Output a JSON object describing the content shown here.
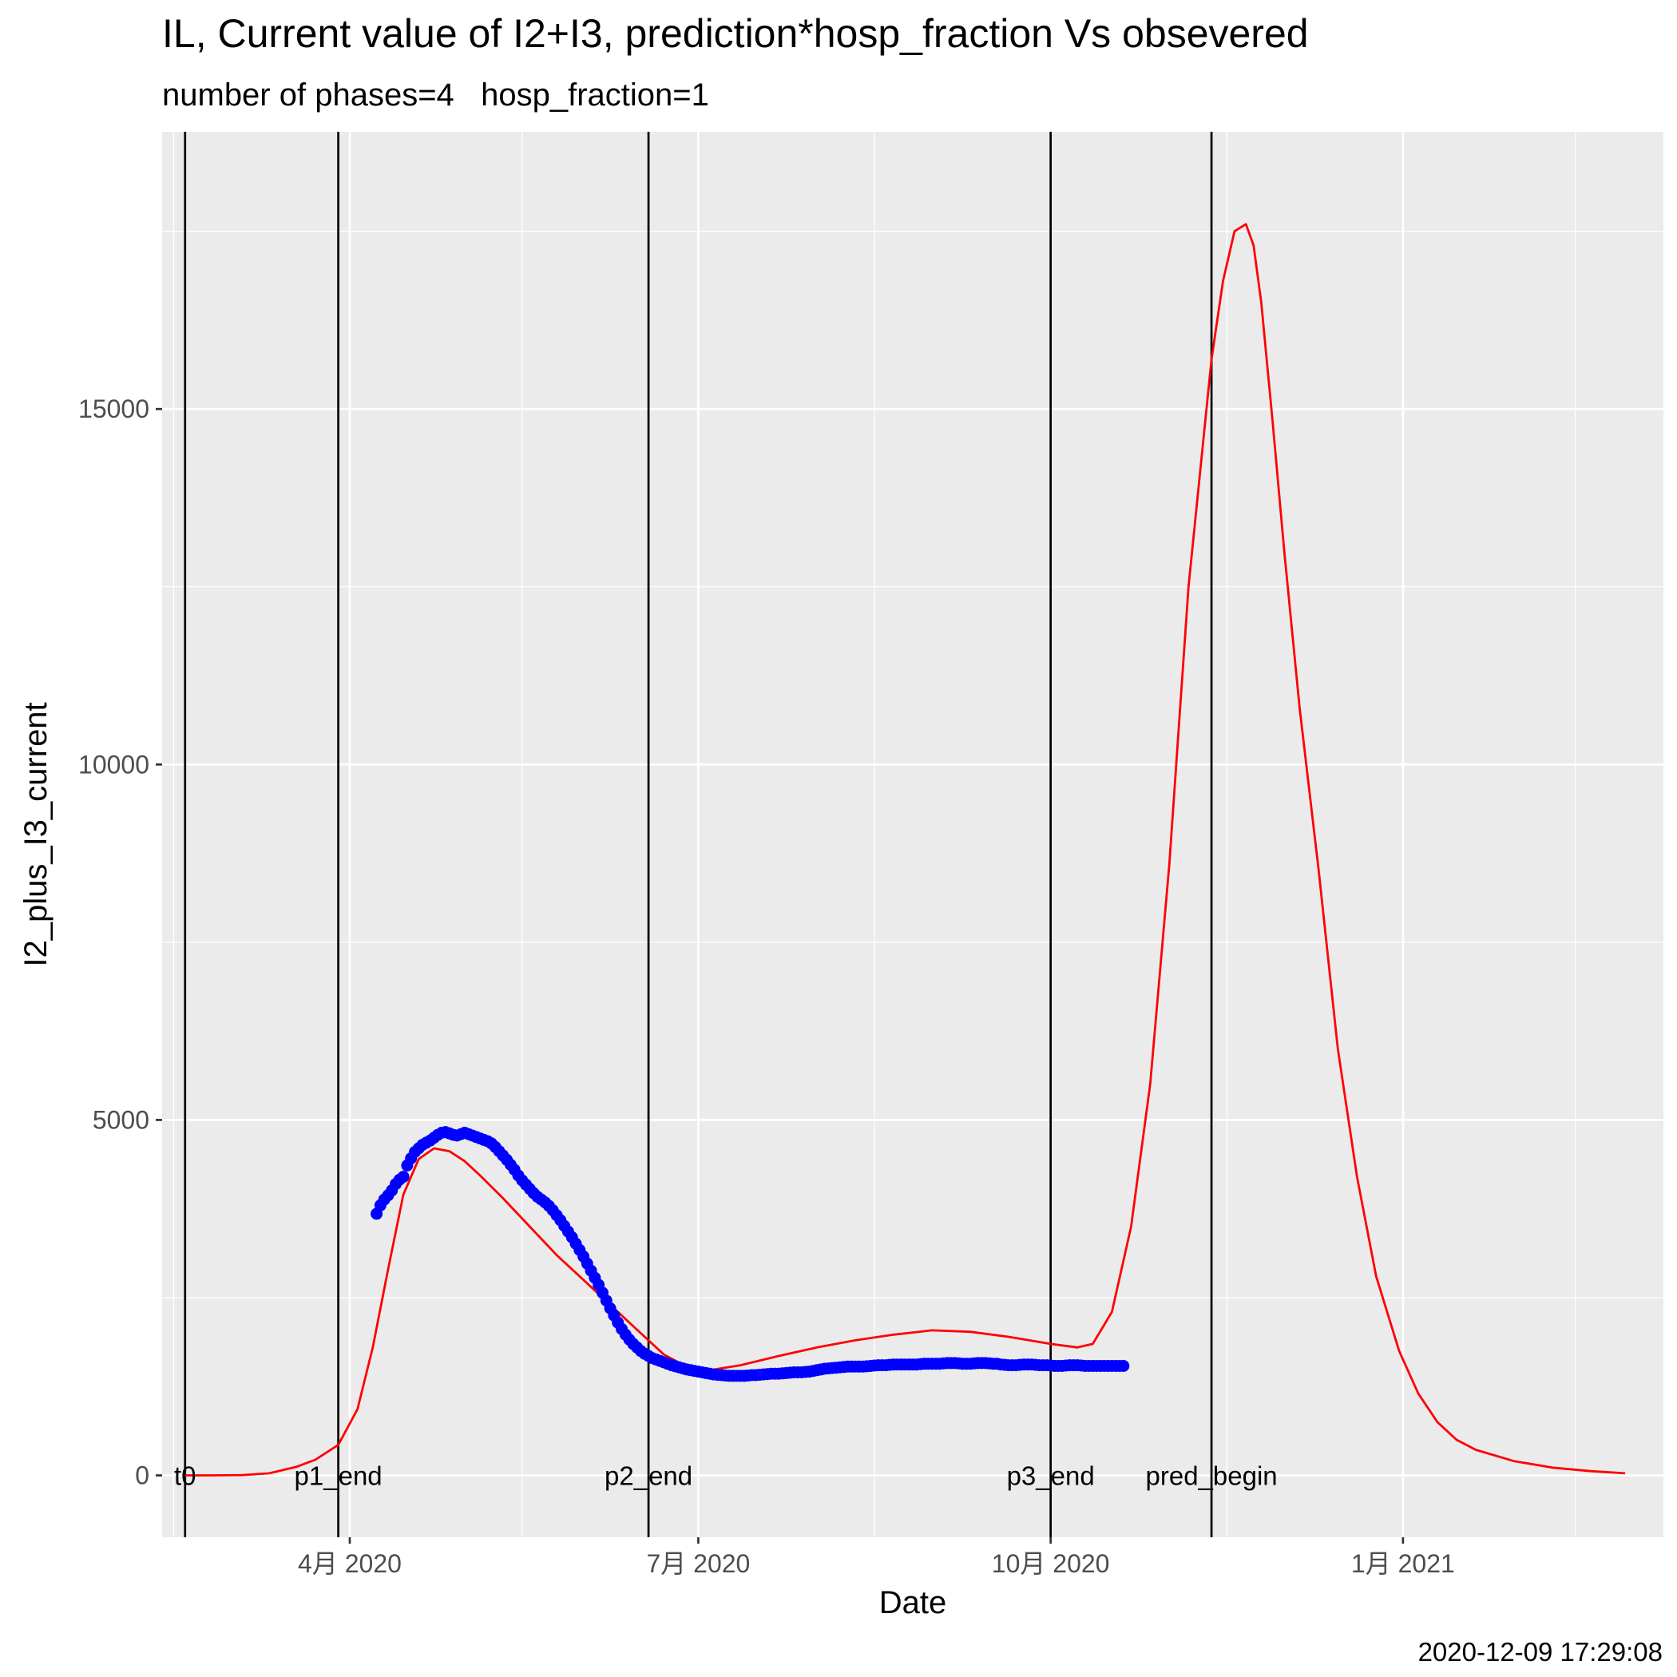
{
  "chart_data": {
    "type": "line",
    "title": "IL, Current value of I2+I3, prediction*hosp_fraction Vs obsevered",
    "subtitle": "number of phases=4   hosp_fraction=1",
    "xlabel": "Date",
    "ylabel": "I2_plus_I3_current",
    "caption": "2020-12-09 17:29:08",
    "xlim": [
      "2020-02-12",
      "2021-03-10"
    ],
    "ylim": [
      -870,
      18900
    ],
    "grid": true,
    "x_ticks": [
      {
        "date": "2020-04-01",
        "label": "4月 2020"
      },
      {
        "date": "2020-07-01",
        "label": "7月 2020"
      },
      {
        "date": "2020-10-01",
        "label": "10月 2020"
      },
      {
        "date": "2021-01-01",
        "label": "1月 2021"
      }
    ],
    "x_minor_ticks": [
      "2020-02-15",
      "2020-05-16",
      "2020-08-16",
      "2020-11-16",
      "2021-02-15"
    ],
    "y_ticks": [
      0,
      5000,
      10000,
      15000
    ],
    "y_minor_ticks": [
      2500,
      7500,
      12500,
      17500
    ],
    "colors": {
      "prediction": "#ff0000",
      "observed": "#0000ff",
      "vline": "#000000",
      "panel": "#ebebeb",
      "grid": "#ffffff"
    },
    "phase_lines": [
      {
        "label": "t0",
        "date": "2020-02-18"
      },
      {
        "label": "p1_end",
        "date": "2020-03-29"
      },
      {
        "label": "p2_end",
        "date": "2020-06-18"
      },
      {
        "label": "p3_end",
        "date": "2020-10-01"
      },
      {
        "label": "pred_begin",
        "date": "2020-11-12"
      }
    ],
    "series": [
      {
        "role": "prediction",
        "x": [
          "2020-02-18",
          "2020-02-25",
          "2020-03-04",
          "2020-03-11",
          "2020-03-18",
          "2020-03-23",
          "2020-03-29",
          "2020-04-03",
          "2020-04-07",
          "2020-04-11",
          "2020-04-15",
          "2020-04-19",
          "2020-04-23",
          "2020-04-27",
          "2020-05-01",
          "2020-05-05",
          "2020-05-11",
          "2020-05-18",
          "2020-05-25",
          "2020-06-01",
          "2020-06-08",
          "2020-06-15",
          "2020-06-22",
          "2020-06-29",
          "2020-07-04",
          "2020-07-12",
          "2020-07-22",
          "2020-08-01",
          "2020-08-11",
          "2020-08-21",
          "2020-08-31",
          "2020-09-10",
          "2020-09-20",
          "2020-10-01",
          "2020-10-08",
          "2020-10-12",
          "2020-10-17",
          "2020-10-22",
          "2020-10-27",
          "2020-11-01",
          "2020-11-06",
          "2020-11-12",
          "2020-11-15",
          "2020-11-18",
          "2020-11-21",
          "2020-11-23",
          "2020-11-25",
          "2020-11-28",
          "2020-12-01",
          "2020-12-05",
          "2020-12-10",
          "2020-12-15",
          "2020-12-20",
          "2020-12-25",
          "2020-12-31",
          "2021-01-05",
          "2021-01-10",
          "2021-01-15",
          "2021-01-20",
          "2021-01-30",
          "2021-02-09",
          "2021-02-19",
          "2021-02-28"
        ],
        "y": [
          0,
          0,
          5,
          30,
          120,
          220,
          430,
          930,
          1800,
          2900,
          3950,
          4450,
          4600,
          4560,
          4420,
          4220,
          3900,
          3500,
          3100,
          2750,
          2400,
          2050,
          1700,
          1500,
          1480,
          1550,
          1680,
          1800,
          1900,
          1980,
          2040,
          2020,
          1950,
          1850,
          1800,
          1850,
          2300,
          3500,
          5500,
          8600,
          12500,
          15700,
          16800,
          17500,
          17600,
          17300,
          16500,
          14800,
          13000,
          10800,
          8500,
          6000,
          4200,
          2800,
          1750,
          1150,
          750,
          500,
          360,
          200,
          110,
          60,
          30
        ]
      },
      {
        "role": "observed",
        "x": [
          "2020-04-08",
          "2020-04-09",
          "2020-04-10",
          "2020-04-11",
          "2020-04-12",
          "2020-04-13",
          "2020-04-14",
          "2020-04-15",
          "2020-04-16",
          "2020-04-17",
          "2020-04-18",
          "2020-04-19",
          "2020-04-20",
          "2020-04-21",
          "2020-04-22",
          "2020-04-23",
          "2020-04-24",
          "2020-04-25",
          "2020-04-26",
          "2020-04-27",
          "2020-04-28",
          "2020-04-29",
          "2020-04-30",
          "2020-05-01",
          "2020-05-02",
          "2020-05-03",
          "2020-05-04",
          "2020-05-05",
          "2020-05-06",
          "2020-05-07",
          "2020-05-08",
          "2020-05-09",
          "2020-05-10",
          "2020-05-11",
          "2020-05-12",
          "2020-05-13",
          "2020-05-14",
          "2020-05-15",
          "2020-05-16",
          "2020-05-17",
          "2020-05-18",
          "2020-05-19",
          "2020-05-20",
          "2020-05-21",
          "2020-05-22",
          "2020-05-23",
          "2020-05-24",
          "2020-05-25",
          "2020-05-26",
          "2020-05-27",
          "2020-05-28",
          "2020-05-29",
          "2020-05-30",
          "2020-05-31",
          "2020-06-01",
          "2020-06-02",
          "2020-06-03",
          "2020-06-04",
          "2020-06-05",
          "2020-06-06",
          "2020-06-07",
          "2020-06-08",
          "2020-06-09",
          "2020-06-10",
          "2020-06-11",
          "2020-06-12",
          "2020-06-13",
          "2020-06-14",
          "2020-06-15",
          "2020-06-16",
          "2020-06-17",
          "2020-06-18",
          "2020-06-19",
          "2020-06-20",
          "2020-06-21",
          "2020-06-22",
          "2020-06-23",
          "2020-06-24",
          "2020-06-25",
          "2020-06-26",
          "2020-06-27",
          "2020-06-28",
          "2020-06-29",
          "2020-06-30",
          "2020-07-01",
          "2020-07-02",
          "2020-07-03",
          "2020-07-04",
          "2020-07-05",
          "2020-07-06",
          "2020-07-07",
          "2020-07-08",
          "2020-07-09",
          "2020-07-10",
          "2020-07-11",
          "2020-07-12",
          "2020-07-13",
          "2020-07-14",
          "2020-07-15",
          "2020-07-16",
          "2020-07-17",
          "2020-07-18",
          "2020-07-19",
          "2020-07-20",
          "2020-07-21",
          "2020-07-22",
          "2020-07-23",
          "2020-07-24",
          "2020-07-25",
          "2020-07-26",
          "2020-07-27",
          "2020-07-28",
          "2020-07-29",
          "2020-07-30",
          "2020-07-31",
          "2020-08-01",
          "2020-08-02",
          "2020-08-03",
          "2020-08-04",
          "2020-08-05",
          "2020-08-06",
          "2020-08-07",
          "2020-08-08",
          "2020-08-09",
          "2020-08-10",
          "2020-08-11",
          "2020-08-12",
          "2020-08-13",
          "2020-08-14",
          "2020-08-15",
          "2020-08-16",
          "2020-08-17",
          "2020-08-18",
          "2020-08-19",
          "2020-08-20",
          "2020-08-21",
          "2020-08-22",
          "2020-08-23",
          "2020-08-24",
          "2020-08-25",
          "2020-08-26",
          "2020-08-27",
          "2020-08-28",
          "2020-08-29",
          "2020-08-30",
          "2020-08-31",
          "2020-09-01",
          "2020-09-02",
          "2020-09-03",
          "2020-09-04",
          "2020-09-05",
          "2020-09-06",
          "2020-09-07",
          "2020-09-08",
          "2020-09-09",
          "2020-09-10",
          "2020-09-11",
          "2020-09-12",
          "2020-09-13",
          "2020-09-14",
          "2020-09-15",
          "2020-09-16",
          "2020-09-17",
          "2020-09-18",
          "2020-09-19",
          "2020-09-20",
          "2020-09-21",
          "2020-09-22",
          "2020-09-23",
          "2020-09-24",
          "2020-09-25",
          "2020-09-26",
          "2020-09-27",
          "2020-09-28",
          "2020-09-29",
          "2020-09-30",
          "2020-10-01",
          "2020-10-02",
          "2020-10-03",
          "2020-10-04",
          "2020-10-05",
          "2020-10-06",
          "2020-10-07",
          "2020-10-08",
          "2020-10-09",
          "2020-10-10",
          "2020-10-11",
          "2020-10-12",
          "2020-10-13",
          "2020-10-14",
          "2020-10-15",
          "2020-10-16",
          "2020-10-17",
          "2020-10-18",
          "2020-10-19",
          "2020-10-20"
        ],
        "y": [
          3680,
          3800,
          3880,
          3940,
          4010,
          4100,
          4160,
          4200,
          4360,
          4460,
          4550,
          4600,
          4650,
          4680,
          4710,
          4750,
          4790,
          4820,
          4830,
          4810,
          4790,
          4780,
          4800,
          4820,
          4800,
          4780,
          4760,
          4740,
          4720,
          4700,
          4670,
          4620,
          4560,
          4500,
          4440,
          4370,
          4300,
          4220,
          4150,
          4090,
          4030,
          3970,
          3920,
          3880,
          3840,
          3790,
          3730,
          3660,
          3590,
          3510,
          3430,
          3350,
          3260,
          3170,
          3080,
          2980,
          2880,
          2780,
          2680,
          2570,
          2460,
          2350,
          2250,
          2150,
          2060,
          1980,
          1910,
          1850,
          1800,
          1750,
          1710,
          1680,
          1650,
          1630,
          1610,
          1590,
          1570,
          1550,
          1535,
          1520,
          1505,
          1490,
          1480,
          1470,
          1460,
          1450,
          1440,
          1430,
          1420,
          1415,
          1410,
          1405,
          1400,
          1400,
          1400,
          1400,
          1400,
          1405,
          1410,
          1410,
          1415,
          1420,
          1425,
          1430,
          1430,
          1430,
          1435,
          1440,
          1445,
          1450,
          1450,
          1450,
          1455,
          1460,
          1470,
          1480,
          1490,
          1500,
          1505,
          1510,
          1515,
          1520,
          1525,
          1530,
          1530,
          1530,
          1530,
          1530,
          1535,
          1540,
          1545,
          1550,
          1550,
          1550,
          1555,
          1560,
          1560,
          1560,
          1560,
          1560,
          1560,
          1560,
          1565,
          1570,
          1570,
          1570,
          1570,
          1570,
          1575,
          1580,
          1580,
          1580,
          1575,
          1570,
          1570,
          1570,
          1575,
          1580,
          1580,
          1580,
          1575,
          1570,
          1570,
          1560,
          1555,
          1550,
          1550,
          1550,
          1555,
          1560,
          1560,
          1560,
          1555,
          1550,
          1550,
          1550,
          1545,
          1540,
          1540,
          1540,
          1545,
          1550,
          1550,
          1550,
          1545,
          1540,
          1540,
          1540,
          1540,
          1540,
          1540,
          1540,
          1540,
          1540,
          1540,
          1540
        ]
      }
    ]
  }
}
